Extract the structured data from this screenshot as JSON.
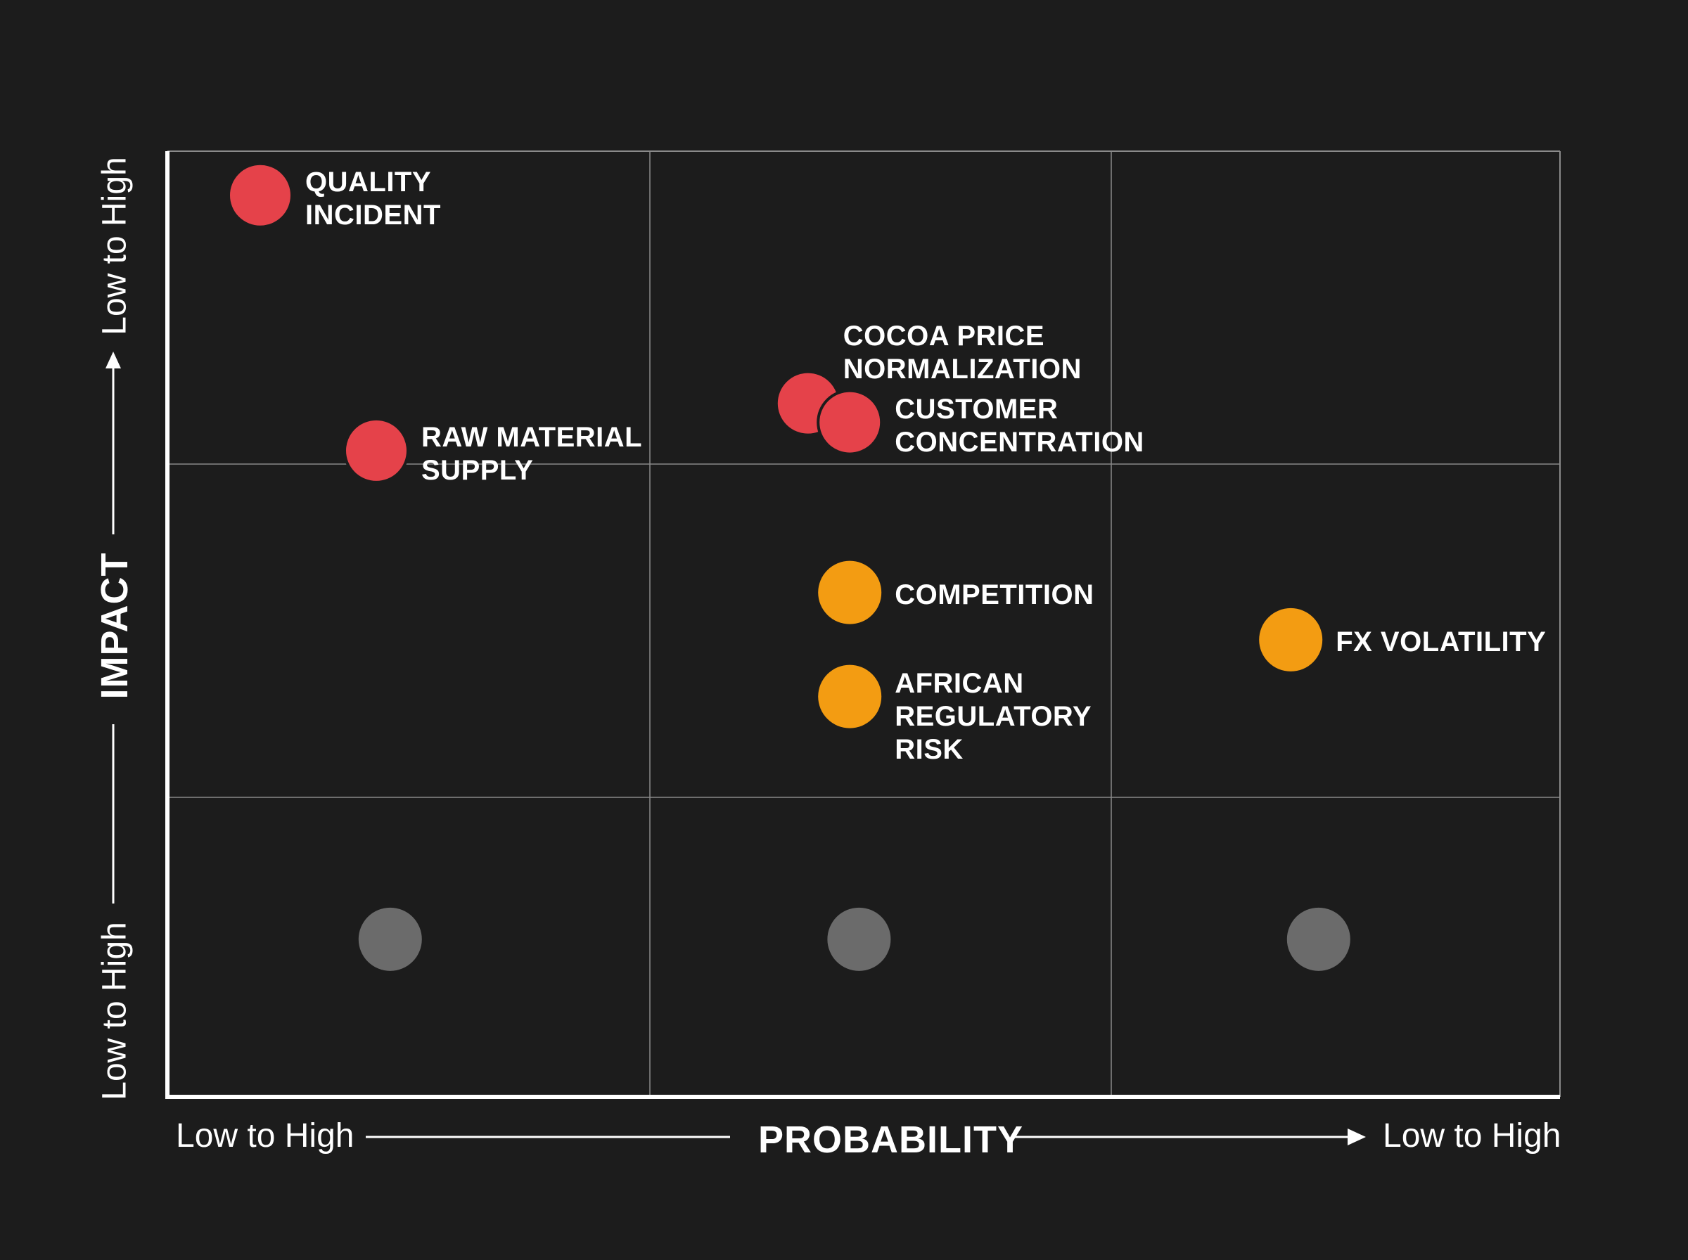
{
  "chart_data": {
    "type": "scatter",
    "title": "",
    "xlabel": "PROBABILITY",
    "ylabel": "IMPACT",
    "x_range_labels": {
      "start": "Low to High",
      "end": "Low to High"
    },
    "y_range_labels": {
      "start": "Low to High",
      "end": "Low to High"
    },
    "xlim": [
      0,
      3
    ],
    "ylim": [
      0,
      3
    ],
    "grid": "3x3",
    "colors": {
      "high": "#e5424a",
      "medium": "#f39c12",
      "low": "#6b6b6b",
      "background": "#1c1c1c",
      "grid": "#8a8a8a",
      "axis": "#ffffff"
    },
    "points": [
      {
        "label": "QUALITY\nINCIDENT",
        "x": 0.2,
        "y": 2.86,
        "level": "high"
      },
      {
        "label": "RAW MATERIAL\nSUPPLY",
        "x": 0.45,
        "y": 2.05,
        "level": "high"
      },
      {
        "label": "COCOA PRICE\nNORMALIZATION",
        "x": 1.38,
        "y": 2.2,
        "level": "high"
      },
      {
        "label": "CUSTOMER\nCONCENTRATION",
        "x": 1.47,
        "y": 2.14,
        "level": "high"
      },
      {
        "label": "COMPETITION",
        "x": 1.47,
        "y": 1.6,
        "level": "medium"
      },
      {
        "label": "AFRICAN\nREGULATORY\nRISK",
        "x": 1.47,
        "y": 1.27,
        "level": "medium"
      },
      {
        "label": "FX VOLATILITY",
        "x": 2.42,
        "y": 1.45,
        "level": "medium"
      },
      {
        "label": "",
        "x": 0.48,
        "y": 0.5,
        "level": "low"
      },
      {
        "label": "",
        "x": 1.49,
        "y": 0.5,
        "level": "low"
      },
      {
        "label": "",
        "x": 2.48,
        "y": 0.5,
        "level": "low"
      }
    ]
  }
}
